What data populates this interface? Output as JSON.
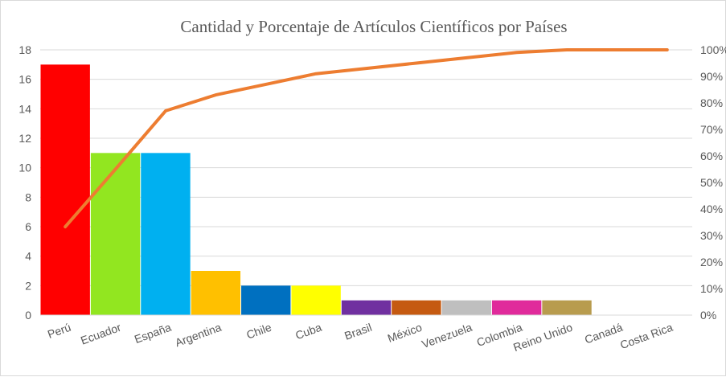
{
  "chart_data": {
    "type": "bar",
    "title": "Cantidad y Porcentaje de Artículos Científicos por Países",
    "categories": [
      "Perú",
      "Ecuador",
      "España",
      "Argentina",
      "Chile",
      "Cuba",
      "Brasil",
      "México",
      "Venezuela",
      "Colombia",
      "Reino Unido",
      "Canadá",
      "Costa Rica"
    ],
    "series": [
      {
        "kind": "bar",
        "values": [
          17,
          11,
          11,
          3,
          2,
          2,
          1,
          1,
          1,
          1,
          1,
          0,
          0
        ],
        "colors": [
          "#ff0000",
          "#92e620",
          "#00b0f0",
          "#ffc000",
          "#0070c0",
          "#ffff00",
          "#7030a0",
          "#c55a11",
          "#bfbfbf",
          "#e02b9b",
          "#b89c4e",
          "#ffffff",
          "#ffffff"
        ]
      },
      {
        "kind": "line",
        "axis": "secondary",
        "values": [
          33.3,
          55,
          77,
          83,
          87,
          91,
          93,
          95,
          97,
          99,
          100,
          100,
          100
        ],
        "color": "#ed7d31"
      }
    ],
    "y_axis": {
      "min": 0,
      "max": 18,
      "ticks": [
        "0",
        "2",
        "4",
        "6",
        "8",
        "10",
        "12",
        "14",
        "16",
        "18"
      ]
    },
    "y2_axis": {
      "min": 0,
      "max": 100,
      "ticks": [
        "0%",
        "10%",
        "20%",
        "30%",
        "40%",
        "50%",
        "60%",
        "70%",
        "80%",
        "90%",
        "100%"
      ]
    },
    "grid": true,
    "gridline_color": "#d9d9d9",
    "legend": "none"
  }
}
